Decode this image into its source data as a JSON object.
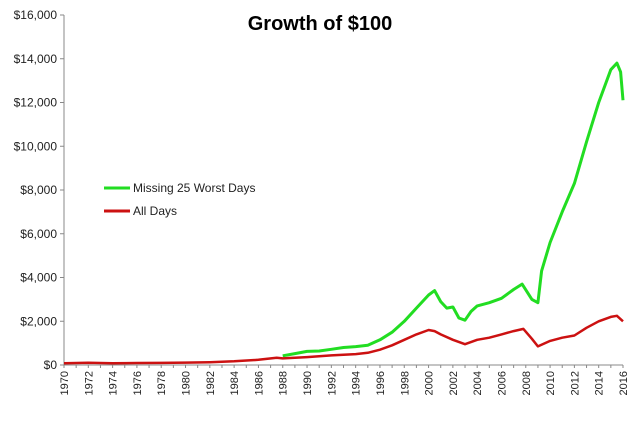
{
  "chart_data": {
    "type": "line",
    "title": "Growth of $100",
    "xlabel": "",
    "ylabel": "",
    "xlim": [
      1970,
      2016
    ],
    "ylim": [
      0,
      16000
    ],
    "grid": false,
    "legend_position": "left-middle",
    "y_ticks": [
      0,
      2000,
      4000,
      6000,
      8000,
      10000,
      12000,
      14000,
      16000
    ],
    "y_tick_labels": [
      "$0",
      "$2,000",
      "$4,000",
      "$6,000",
      "$8,000",
      "$10,000",
      "$12,000",
      "$14,000",
      "$16,000"
    ],
    "x_tick_labels": [
      "1970",
      "1972",
      "1974",
      "1976",
      "1978",
      "1980",
      "1982",
      "1984",
      "1986",
      "1988",
      "1990",
      "1992",
      "1994",
      "1996",
      "1998",
      "2000",
      "2002",
      "2004",
      "2006",
      "2008",
      "2010",
      "2012",
      "2014",
      "2016"
    ],
    "series": [
      {
        "name": "Missing 25 Worst Days",
        "color": "#22dd22",
        "points": [
          [
            1988.0,
            420
          ],
          [
            1989.0,
            520
          ],
          [
            1990.0,
            620
          ],
          [
            1991.0,
            640
          ],
          [
            1992.0,
            720
          ],
          [
            1993.0,
            800
          ],
          [
            1994.0,
            840
          ],
          [
            1995.0,
            900
          ],
          [
            1996.0,
            1150
          ],
          [
            1997.0,
            1500
          ],
          [
            1998.0,
            2000
          ],
          [
            1999.0,
            2600
          ],
          [
            2000.0,
            3200
          ],
          [
            2000.5,
            3400
          ],
          [
            2001.0,
            2900
          ],
          [
            2001.5,
            2600
          ],
          [
            2002.0,
            2650
          ],
          [
            2002.5,
            2150
          ],
          [
            2003.0,
            2050
          ],
          [
            2003.5,
            2450
          ],
          [
            2004.0,
            2700
          ],
          [
            2005.0,
            2850
          ],
          [
            2006.0,
            3050
          ],
          [
            2007.0,
            3450
          ],
          [
            2007.7,
            3700
          ],
          [
            2008.5,
            3000
          ],
          [
            2009.0,
            2850
          ],
          [
            2009.3,
            4300
          ],
          [
            2010.0,
            5600
          ],
          [
            2011.0,
            7000
          ],
          [
            2012.0,
            8300
          ],
          [
            2013.0,
            10200
          ],
          [
            2014.0,
            12000
          ],
          [
            2015.0,
            13500
          ],
          [
            2015.5,
            13800
          ],
          [
            2015.8,
            13400
          ],
          [
            2016.0,
            12100
          ]
        ]
      },
      {
        "name": "All Days",
        "color": "#cc1111",
        "points": [
          [
            1970.0,
            80
          ],
          [
            1972.0,
            100
          ],
          [
            1974.0,
            80
          ],
          [
            1976.0,
            90
          ],
          [
            1978.0,
            95
          ],
          [
            1980.0,
            110
          ],
          [
            1982.0,
            130
          ],
          [
            1984.0,
            170
          ],
          [
            1986.0,
            240
          ],
          [
            1987.5,
            330
          ],
          [
            1988.0,
            300
          ],
          [
            1990.0,
            360
          ],
          [
            1992.0,
            440
          ],
          [
            1994.0,
            500
          ],
          [
            1995.0,
            560
          ],
          [
            1996.0,
            700
          ],
          [
            1997.0,
            900
          ],
          [
            1998.0,
            1150
          ],
          [
            1999.0,
            1400
          ],
          [
            2000.0,
            1600
          ],
          [
            2000.5,
            1550
          ],
          [
            2001.0,
            1400
          ],
          [
            2002.0,
            1150
          ],
          [
            2003.0,
            950
          ],
          [
            2004.0,
            1150
          ],
          [
            2005.0,
            1250
          ],
          [
            2006.0,
            1400
          ],
          [
            2007.0,
            1550
          ],
          [
            2007.8,
            1650
          ],
          [
            2008.5,
            1200
          ],
          [
            2009.0,
            850
          ],
          [
            2010.0,
            1100
          ],
          [
            2011.0,
            1250
          ],
          [
            2012.0,
            1350
          ],
          [
            2013.0,
            1700
          ],
          [
            2014.0,
            2000
          ],
          [
            2015.0,
            2200
          ],
          [
            2015.5,
            2250
          ],
          [
            2016.0,
            2000
          ]
        ]
      }
    ]
  }
}
